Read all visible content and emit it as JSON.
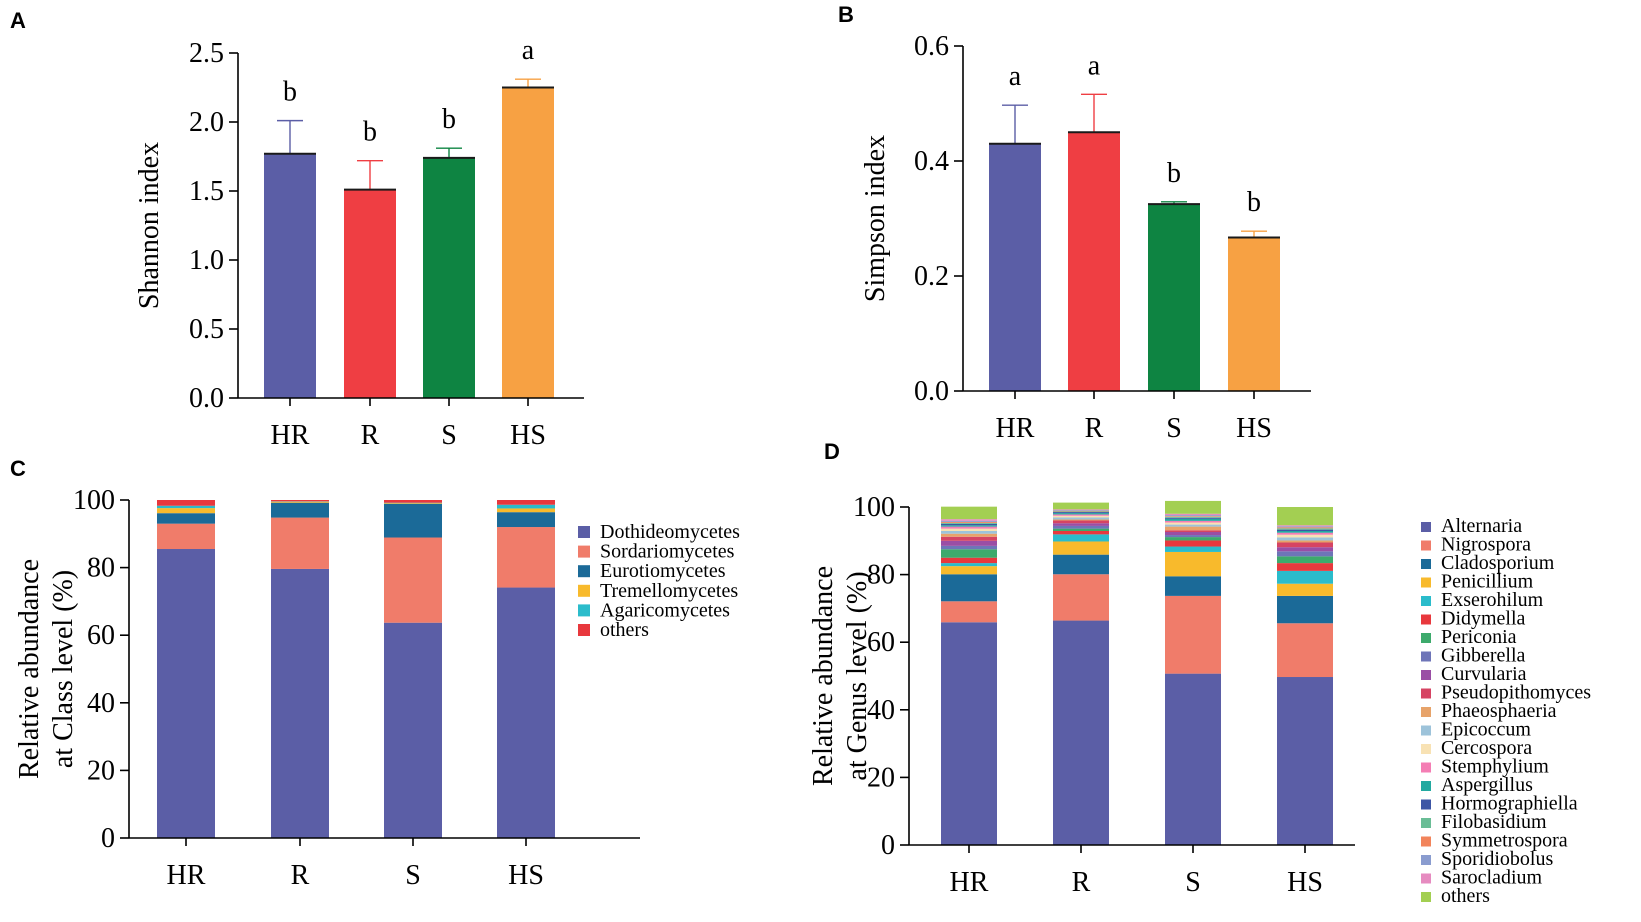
{
  "colors": {
    "HR": "#5B5EA6",
    "R": "#EF3E43",
    "S": "#0E8442",
    "HS": "#F7A143"
  },
  "chart_data": [
    {
      "panel": "A",
      "type": "bar",
      "categories": [
        "HR",
        "R",
        "S",
        "HS"
      ],
      "values": [
        1.77,
        1.51,
        1.74,
        2.25
      ],
      "errors": [
        0.24,
        0.21,
        0.07,
        0.06
      ],
      "significance": [
        "b",
        "b",
        "b",
        "a"
      ],
      "ylabel": "Shannon index",
      "ylim": [
        0,
        2.5
      ],
      "yticks": [
        "0.0",
        "0.5",
        "1.0",
        "1.5",
        "2.0",
        "2.5"
      ]
    },
    {
      "panel": "B",
      "type": "bar",
      "categories": [
        "HR",
        "R",
        "S",
        "HS"
      ],
      "values": [
        0.43,
        0.45,
        0.325,
        0.267
      ],
      "errors": [
        0.067,
        0.066,
        0.004,
        0.011
      ],
      "significance": [
        "a",
        "a",
        "b",
        "b"
      ],
      "ylabel": "Simpson index",
      "ylim": [
        0,
        0.6
      ],
      "yticks": [
        "0.0",
        "0.2",
        "0.4",
        "0.6"
      ]
    },
    {
      "panel": "C",
      "type": "bar",
      "stacked": true,
      "categories": [
        "HR",
        "R",
        "S",
        "HS"
      ],
      "ylabel_lines": [
        "Relative abundance",
        "at Class level (%)"
      ],
      "ylim": [
        0,
        100
      ],
      "yticks": [
        "0",
        "20",
        "40",
        "60",
        "80",
        "100"
      ],
      "series": [
        {
          "name": "Dothideomycetes",
          "color": "#5B5EA6",
          "values": [
            85.5,
            79.6,
            63.7,
            74.1
          ]
        },
        {
          "name": "Sordariomycetes",
          "color": "#F07C6A",
          "values": [
            7.5,
            15.2,
            25.2,
            17.9
          ]
        },
        {
          "name": "Eurotiomycetes",
          "color": "#1B6A98",
          "values": [
            3.1,
            4.4,
            10.0,
            4.4
          ]
        },
        {
          "name": "Tremellomycetes",
          "color": "#F8BA2C",
          "values": [
            1.5,
            0.3,
            0.2,
            1.1
          ]
        },
        {
          "name": "Agaricomycetes",
          "color": "#2BBCCB",
          "values": [
            0.7,
            0.1,
            0.1,
            1.1
          ]
        },
        {
          "name": "others",
          "color": "#E8383D",
          "values": [
            1.7,
            0.4,
            0.8,
            1.4
          ]
        }
      ]
    },
    {
      "panel": "D",
      "type": "bar",
      "stacked": true,
      "categories": [
        "HR",
        "R",
        "S",
        "HS"
      ],
      "ylabel_lines": [
        "Relative abundance",
        "at Genus level (%)"
      ],
      "ylim": [
        0,
        100
      ],
      "yticks": [
        "0",
        "20",
        "40",
        "60",
        "80",
        "100"
      ],
      "series": [
        {
          "name": "Alternaria",
          "color": "#5B5EA6",
          "values": [
            65.9,
            66.4,
            50.7,
            49.7
          ]
        },
        {
          "name": "Nigrospora",
          "color": "#F07C6A",
          "values": [
            6.2,
            13.7,
            23.0,
            15.9
          ]
        },
        {
          "name": "Cladosporium",
          "color": "#1B6A98",
          "values": [
            8.0,
            5.8,
            5.8,
            8.1
          ]
        },
        {
          "name": "Penicillium",
          "color": "#F8BA2C",
          "values": [
            2.4,
            3.9,
            7.2,
            3.6
          ]
        },
        {
          "name": "Exserohilum",
          "color": "#2BBCCB",
          "values": [
            0.9,
            2.1,
            1.6,
            3.8
          ]
        },
        {
          "name": "Didymella",
          "color": "#E8383D",
          "values": [
            1.6,
            1.0,
            1.8,
            2.3
          ]
        },
        {
          "name": "Periconia",
          "color": "#3DAA6C",
          "values": [
            2.5,
            0.7,
            1.0,
            2.0
          ]
        },
        {
          "name": "Gibberella",
          "color": "#6E75B8",
          "values": [
            1.0,
            0.8,
            0.6,
            1.5
          ]
        },
        {
          "name": "Curvularia",
          "color": "#9A4EA5",
          "values": [
            1.5,
            0.8,
            0.9,
            1.2
          ]
        },
        {
          "name": "Pseudopithomyces",
          "color": "#D64463",
          "values": [
            1.2,
            0.8,
            0.5,
            1.4
          ]
        },
        {
          "name": "Phaeosphaeria",
          "color": "#E7A36A",
          "values": [
            0.9,
            0.3,
            1.1,
            0.6
          ]
        },
        {
          "name": "Epicoccum",
          "color": "#9DC3DA",
          "values": [
            0.8,
            0.6,
            0.6,
            0.9
          ]
        },
        {
          "name": "Cercospora",
          "color": "#F8E2B4",
          "values": [
            0.7,
            0.5,
            0.6,
            0.8
          ]
        },
        {
          "name": "Stemphylium",
          "color": "#F47EB4",
          "values": [
            0.6,
            0.4,
            0.5,
            0.6
          ]
        },
        {
          "name": "Aspergillus",
          "color": "#22A9A0",
          "values": [
            0.4,
            0.4,
            0.6,
            0.5
          ]
        },
        {
          "name": "Hormographiella",
          "color": "#3D56A5",
          "values": [
            0.4,
            0.3,
            0.3,
            0.4
          ]
        },
        {
          "name": "Filobasidium",
          "color": "#6ABD96",
          "values": [
            0.3,
            0.2,
            0.3,
            0.4
          ]
        },
        {
          "name": "Symmetrospora",
          "color": "#F2845B",
          "values": [
            0.3,
            0.2,
            0.2,
            0.3
          ]
        },
        {
          "name": "Sporidiobolus",
          "color": "#8A9CCF",
          "values": [
            0.3,
            0.2,
            0.3,
            0.3
          ]
        },
        {
          "name": "Sarocladium",
          "color": "#E68BC0",
          "values": [
            0.5,
            0.2,
            0.4,
            0.3
          ]
        },
        {
          "name": "others",
          "color": "#A3CF52",
          "values": [
            3.7,
            2.0,
            3.8,
            5.4
          ]
        }
      ]
    }
  ],
  "panel_labels": [
    "A",
    "B",
    "C",
    "D"
  ]
}
